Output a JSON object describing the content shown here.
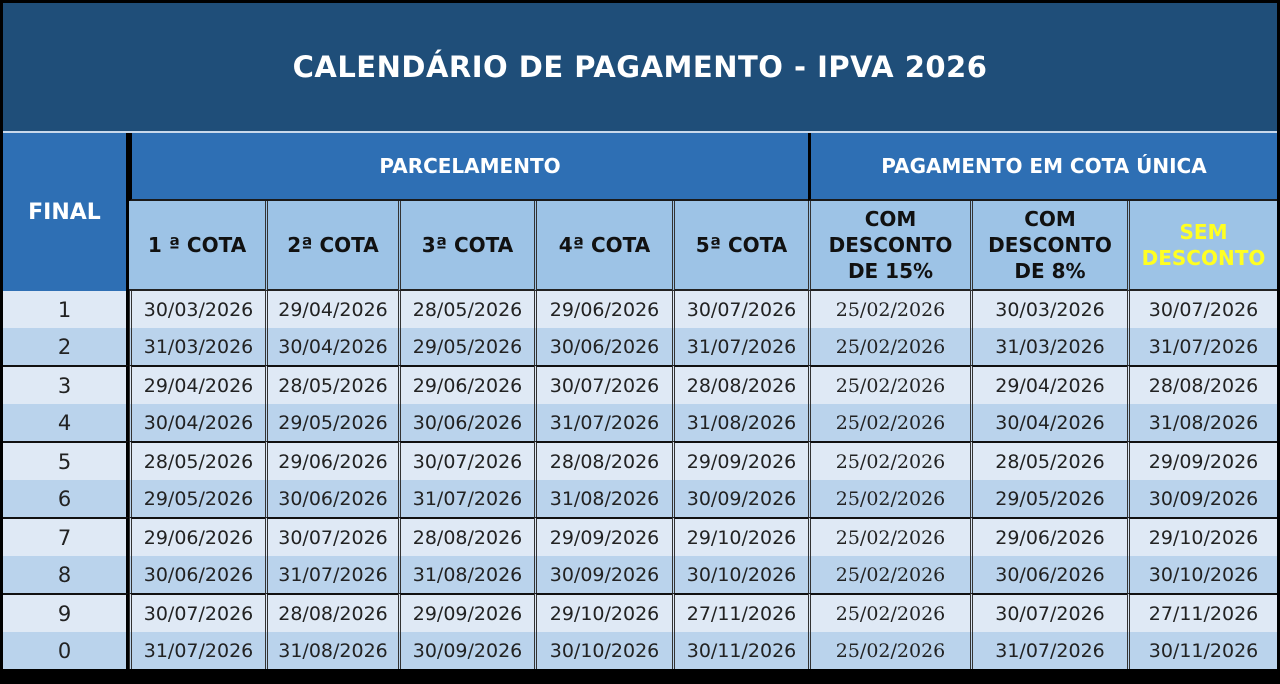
{
  "title": "CALENDÁRIO DE PAGAMENTO - IPVA 2026",
  "headers": {
    "final": "FINAL",
    "parcelamento": "PARCELAMENTO",
    "cota_unica": "PAGAMENTO EM COTA ÚNICA",
    "columns": [
      "1 ª COTA",
      "2ª COTA",
      "3ª COTA",
      "4ª COTA",
      "5ª COTA",
      "COM DESCONTO DE 15%",
      "COM DESCONTO DE 8%",
      "SEM DESCONTO"
    ]
  },
  "colors": {
    "title_bg": "#1f4e79",
    "header_bg": "#2e6fb4",
    "subheader_bg": "#9dc3e6",
    "sem_desconto_text": "#ffff22"
  },
  "rows": [
    {
      "final": "1",
      "values": [
        "30/03/2026",
        "29/04/2026",
        "28/05/2026",
        "29/06/2026",
        "30/07/2026",
        "25/02/2026",
        "30/03/2026",
        "30/07/2026"
      ]
    },
    {
      "final": "2",
      "values": [
        "31/03/2026",
        "30/04/2026",
        "29/05/2026",
        "30/06/2026",
        "31/07/2026",
        "25/02/2026",
        "31/03/2026",
        "31/07/2026"
      ]
    },
    {
      "final": "3",
      "values": [
        "29/04/2026",
        "28/05/2026",
        "29/06/2026",
        "30/07/2026",
        "28/08/2026",
        "25/02/2026",
        "29/04/2026",
        "28/08/2026"
      ]
    },
    {
      "final": "4",
      "values": [
        "30/04/2026",
        "29/05/2026",
        "30/06/2026",
        "31/07/2026",
        "31/08/2026",
        "25/02/2026",
        "30/04/2026",
        "31/08/2026"
      ]
    },
    {
      "final": "5",
      "values": [
        "28/05/2026",
        "29/06/2026",
        "30/07/2026",
        "28/08/2026",
        "29/09/2026",
        "25/02/2026",
        "28/05/2026",
        "29/09/2026"
      ]
    },
    {
      "final": "6",
      "values": [
        "29/05/2026",
        "30/06/2026",
        "31/07/2026",
        "31/08/2026",
        "30/09/2026",
        "25/02/2026",
        "29/05/2026",
        "30/09/2026"
      ]
    },
    {
      "final": "7",
      "values": [
        "29/06/2026",
        "30/07/2026",
        "28/08/2026",
        "29/09/2026",
        "29/10/2026",
        "25/02/2026",
        "29/06/2026",
        "29/10/2026"
      ]
    },
    {
      "final": "8",
      "values": [
        "30/06/2026",
        "31/07/2026",
        "31/08/2026",
        "30/09/2026",
        "30/10/2026",
        "25/02/2026",
        "30/06/2026",
        "30/10/2026"
      ]
    },
    {
      "final": "9",
      "values": [
        "30/07/2026",
        "28/08/2026",
        "29/09/2026",
        "29/10/2026",
        "27/11/2026",
        "25/02/2026",
        "30/07/2026",
        "27/11/2026"
      ]
    },
    {
      "final": "0",
      "values": [
        "31/07/2026",
        "31/08/2026",
        "30/09/2026",
        "30/10/2026",
        "30/11/2026",
        "25/02/2026",
        "31/07/2026",
        "30/11/2026"
      ]
    }
  ]
}
